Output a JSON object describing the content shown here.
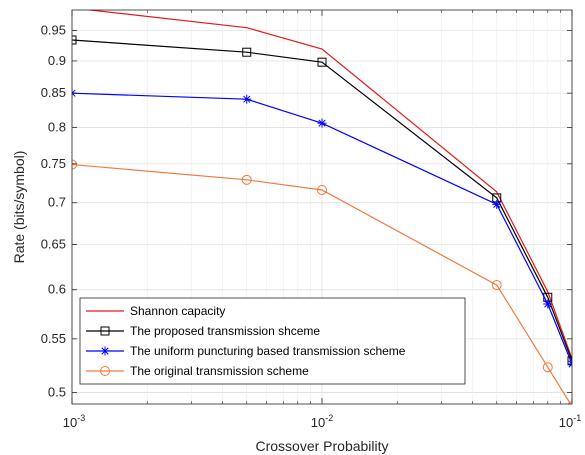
{
  "chart_data": {
    "type": "line",
    "xlabel": "Crossover Probability",
    "ylabel": "Rate (bits/symbol)",
    "x_scale": "log",
    "y_scale": "log",
    "xlim": [
      0.001,
      0.1
    ],
    "ylim": [
      0.49,
      0.985
    ],
    "x_ticks": [
      {
        "value": 0.001,
        "base": "10",
        "exp": "-3"
      },
      {
        "value": 0.01,
        "base": "10",
        "exp": "-2"
      },
      {
        "value": 0.1,
        "base": "10",
        "exp": "-1"
      }
    ],
    "y_ticks": [
      {
        "value": 0.5,
        "label": "0.5"
      },
      {
        "value": 0.55,
        "label": "0.55"
      },
      {
        "value": 0.6,
        "label": "0.6"
      },
      {
        "value": 0.65,
        "label": "0.65"
      },
      {
        "value": 0.7,
        "label": "0.7"
      },
      {
        "value": 0.75,
        "label": "0.75"
      },
      {
        "value": 0.8,
        "label": "0.8"
      },
      {
        "value": 0.85,
        "label": "0.85"
      },
      {
        "value": 0.9,
        "label": "0.9"
      },
      {
        "value": 0.95,
        "label": "0.95"
      }
    ],
    "grid": true,
    "legend_position": "bottom-left",
    "series": [
      {
        "name": "Shannon capacity",
        "color": "#e41a1c",
        "marker": "none",
        "points": [
          [
            0.001,
            0.9886
          ],
          [
            0.005,
            0.9546
          ],
          [
            0.01,
            0.9192
          ],
          [
            0.05,
            0.7136
          ],
          [
            0.08,
            0.5978
          ],
          [
            0.1,
            0.531
          ]
        ]
      },
      {
        "name": "The proposed transmission shceme",
        "color": "#000000",
        "marker": "square",
        "points": [
          [
            0.001,
            0.934
          ],
          [
            0.005,
            0.914
          ],
          [
            0.01,
            0.898
          ],
          [
            0.05,
            0.706
          ],
          [
            0.08,
            0.592
          ],
          [
            0.1,
            0.529
          ]
        ]
      },
      {
        "name": "The uniform puncturing based transmission scheme",
        "color": "#0000ff",
        "marker": "star",
        "points": [
          [
            0.001,
            0.85
          ],
          [
            0.005,
            0.841
          ],
          [
            0.01,
            0.806
          ],
          [
            0.05,
            0.698
          ],
          [
            0.08,
            0.585
          ],
          [
            0.1,
            0.526
          ]
        ]
      },
      {
        "name": "The original transmission scheme",
        "color": "#f07b3f",
        "marker": "circle",
        "points": [
          [
            0.001,
            0.749
          ],
          [
            0.005,
            0.729
          ],
          [
            0.01,
            0.716
          ],
          [
            0.05,
            0.605
          ],
          [
            0.08,
            0.523
          ],
          [
            0.1,
            0.488
          ]
        ]
      }
    ]
  }
}
